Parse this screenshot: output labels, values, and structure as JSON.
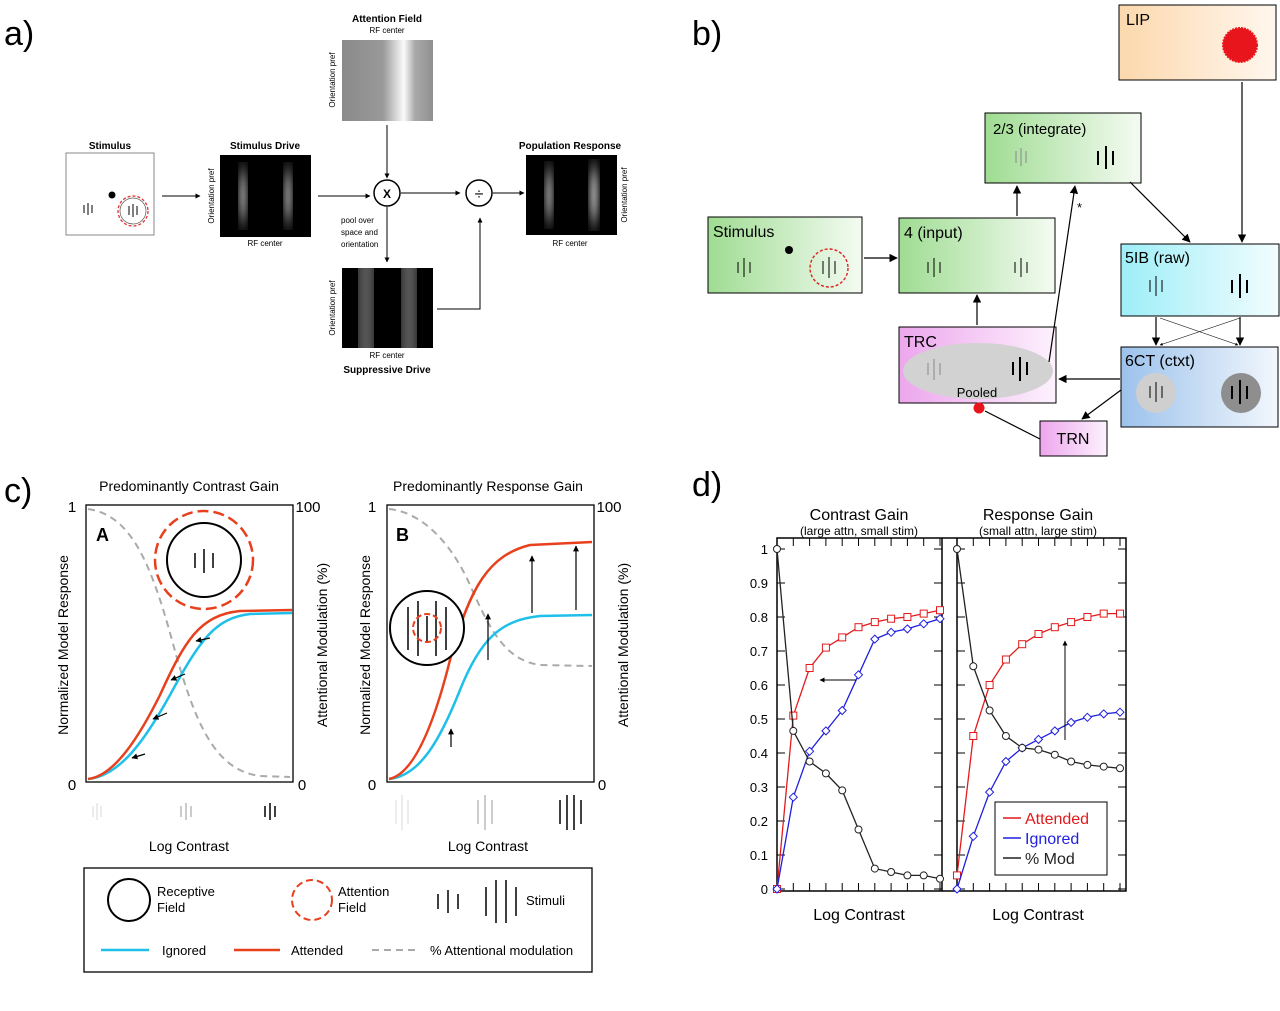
{
  "panel_labels": {
    "a": "a)",
    "b": "b)",
    "c": "c)",
    "d": "d)"
  },
  "panel_a": {
    "stimulus_title": "Stimulus",
    "stimulus_drive_title": "Stimulus Drive",
    "attention_field_title": "Attention Field",
    "attention_field_sub": "RF center",
    "population_response_title": "Population Response",
    "suppressive_drive_title": "Suppressive Drive",
    "axis_orientation": "Orientation pref",
    "axis_rf_center": "RF center",
    "pool_line1": "pool over",
    "pool_line2": "space and",
    "pool_line3": "orientation",
    "multiply_symbol": "X",
    "divide_symbol": "÷"
  },
  "panel_b": {
    "lip": "LIP",
    "layer23": "2/3 (integrate)",
    "stimulus": "Stimulus",
    "layer4": "4 (input)",
    "layer5ib": "5IB (raw)",
    "trc": "TRC",
    "pooled": "Pooled",
    "layer6ct": "6CT (ctxt)",
    "trn": "TRN",
    "star": "*",
    "colors": {
      "lip": "#fde9cf",
      "green": "#c8ecc0",
      "cyan": "#c9f3f8",
      "blue": "#c6dcf4",
      "pink": "#f2c5f2"
    }
  },
  "panel_c": {
    "left_title": "Predominantly Contrast Gain",
    "right_title": "Predominantly Response Gain",
    "letter_a": "A",
    "letter_b": "B",
    "y_left_label": "Normalized Model Response",
    "y_right_label": "Attentional Modulation (%)",
    "y_left_top": "1",
    "y_left_bottom": "0",
    "y_right_top": "100",
    "y_right_bottom": "0",
    "x_label": "Log Contrast",
    "legend": {
      "receptive_field": [
        "Receptive",
        "Field"
      ],
      "attention_field": [
        "Attention",
        "Field"
      ],
      "stimuli": "Stimuli",
      "ignored": "Ignored",
      "attended": "Attended",
      "modulation": "% Attentional modulation"
    },
    "colors": {
      "ignored": "#1ec0ea",
      "attended": "#e8401c",
      "modulation": "#aaaaaa"
    }
  },
  "panel_d": {
    "left_title": "Contrast Gain",
    "left_sub": "(large attn, small stim)",
    "right_title": "Response Gain",
    "right_sub": "(small attn, large stim)",
    "x_label": "Log Contrast",
    "y_ticks": [
      "0",
      "0.1",
      "0.2",
      "0.3",
      "0.4",
      "0.5",
      "0.6",
      "0.7",
      "0.8",
      "0.9",
      "1"
    ],
    "legend": {
      "attended": "Attended",
      "ignored": "Ignored",
      "mod": "% Mod"
    },
    "colors": {
      "attended": "#e31a1c",
      "ignored": "#1f1fe0",
      "mod": "#222222"
    }
  },
  "chart_data": [
    {
      "type": "line",
      "title": "Contrast Gain",
      "xlabel": "Log Contrast",
      "ylim": [
        0,
        1
      ],
      "series": [
        {
          "name": "Attended",
          "values": [
            0,
            0.51,
            0.65,
            0.71,
            0.74,
            0.77,
            0.785,
            0.795,
            0.8,
            0.81,
            0.82
          ]
        },
        {
          "name": "Ignored",
          "values": [
            0,
            0.27,
            0.405,
            0.465,
            0.525,
            0.63,
            0.735,
            0.755,
            0.765,
            0.78,
            0.795
          ]
        },
        {
          "name": "% Mod",
          "values": [
            1,
            0.465,
            0.375,
            0.34,
            0.29,
            0.175,
            0.06,
            0.05,
            0.04,
            0.04,
            0.03
          ]
        }
      ]
    },
    {
      "type": "line",
      "title": "Response Gain",
      "xlabel": "Log Contrast",
      "ylim": [
        0,
        1
      ],
      "series": [
        {
          "name": "Attended",
          "values": [
            0.04,
            0.45,
            0.6,
            0.675,
            0.72,
            0.75,
            0.77,
            0.785,
            0.8,
            0.81,
            0.81
          ]
        },
        {
          "name": "Ignored",
          "values": [
            0,
            0.155,
            0.285,
            0.375,
            0.415,
            0.44,
            0.465,
            0.49,
            0.505,
            0.515,
            0.52
          ]
        },
        {
          "name": "% Mod",
          "values": [
            1,
            0.655,
            0.525,
            0.45,
            0.415,
            0.41,
            0.395,
            0.375,
            0.365,
            0.36,
            0.355
          ]
        }
      ]
    }
  ]
}
